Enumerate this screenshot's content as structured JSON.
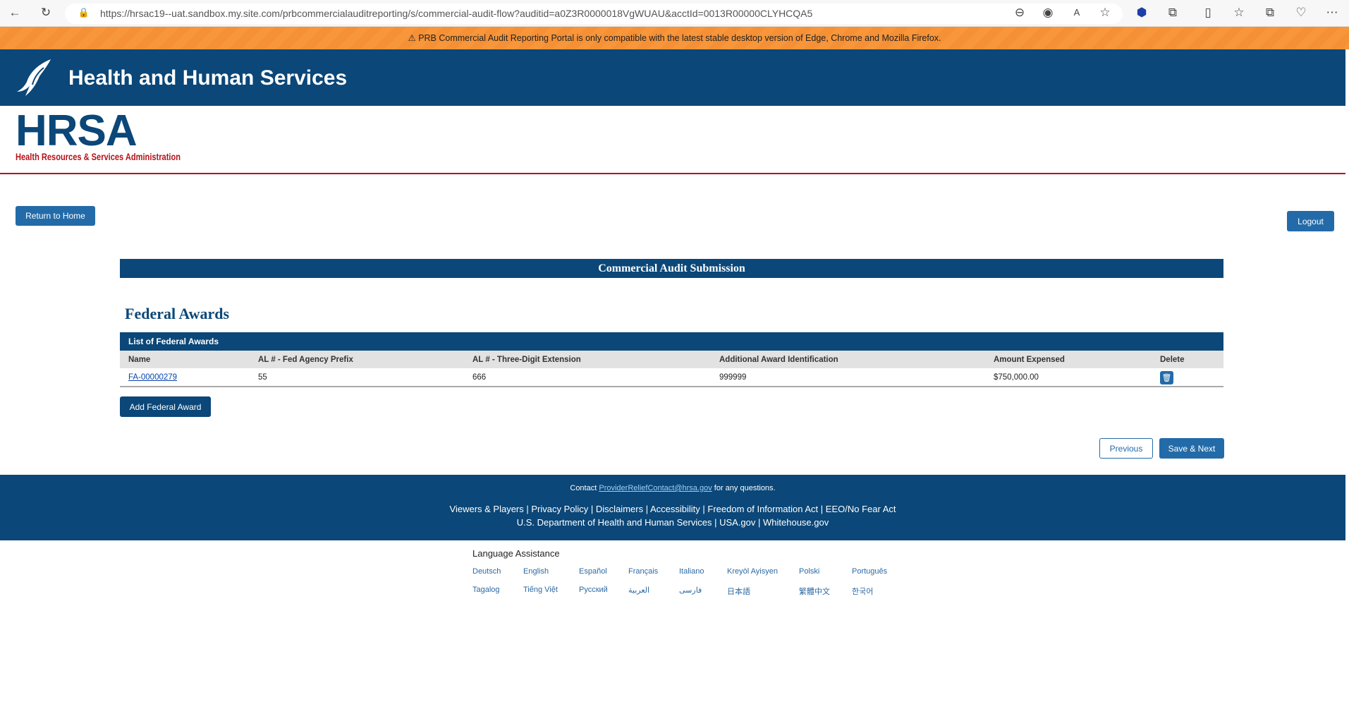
{
  "browser": {
    "url": "https://hrsac19--uat.sandbox.my.site.com/prbcommercialauditreporting/s/commercial-audit-flow?auditid=a0Z3R0000018VgWUAU&acctId=0013R00000CLYHCQA5"
  },
  "banner": {
    "text": "PRB Commercial Audit Reporting Portal is only compatible with the latest stable desktop version of Edge, Chrome and Mozilla Firefox."
  },
  "header": {
    "title": "Health and Human Services",
    "logo_text": "HRSA",
    "logo_subtitle": "Health Resources & Services Administration"
  },
  "nav": {
    "return_home": "Return to Home",
    "logout": "Logout"
  },
  "section": {
    "title": "Commercial Audit Submission",
    "heading": "Federal Awards",
    "list_title": "List of Federal Awards"
  },
  "table": {
    "columns": [
      "Name",
      "AL # - Fed Agency Prefix",
      "AL # - Three-Digit Extension",
      "Additional Award Identification",
      "Amount Expensed",
      "Delete"
    ],
    "rows": [
      {
        "name": "FA-00000279",
        "prefix": "55",
        "extension": "666",
        "additional": "999999",
        "amount": "$750,000.00"
      }
    ]
  },
  "actions": {
    "add": "Add Federal Award",
    "previous": "Previous",
    "save_next": "Save & Next"
  },
  "footer": {
    "contact_pre": "Contact",
    "contact_email": "ProviderReliefContact@hrsa.gov",
    "contact_post": "for any questions.",
    "links1": [
      "Viewers & Players",
      "Privacy Policy",
      "Disclaimers",
      "Accessibility",
      "Freedom of Information Act",
      "EEO/No Fear Act"
    ],
    "links2": [
      "U.S. Department of Health and Human Services",
      "USA.gov",
      "Whitehouse.gov"
    ]
  },
  "language": {
    "title": "Language Assistance",
    "row1": [
      "Deutsch",
      "English",
      "Español",
      "Français",
      "Italiano",
      "Kreyòl Ayisyen",
      "Polski",
      "Português"
    ],
    "row2": [
      "Tagalog",
      "Tiếng Việt",
      "Русский",
      "العربية",
      "فارسی",
      "日本語",
      "繁體中文",
      "한국어"
    ]
  },
  "colors": {
    "primary": "#0b4778",
    "button": "#236ba8",
    "banner": "#f7963a",
    "accent_red": "#b5121b"
  }
}
